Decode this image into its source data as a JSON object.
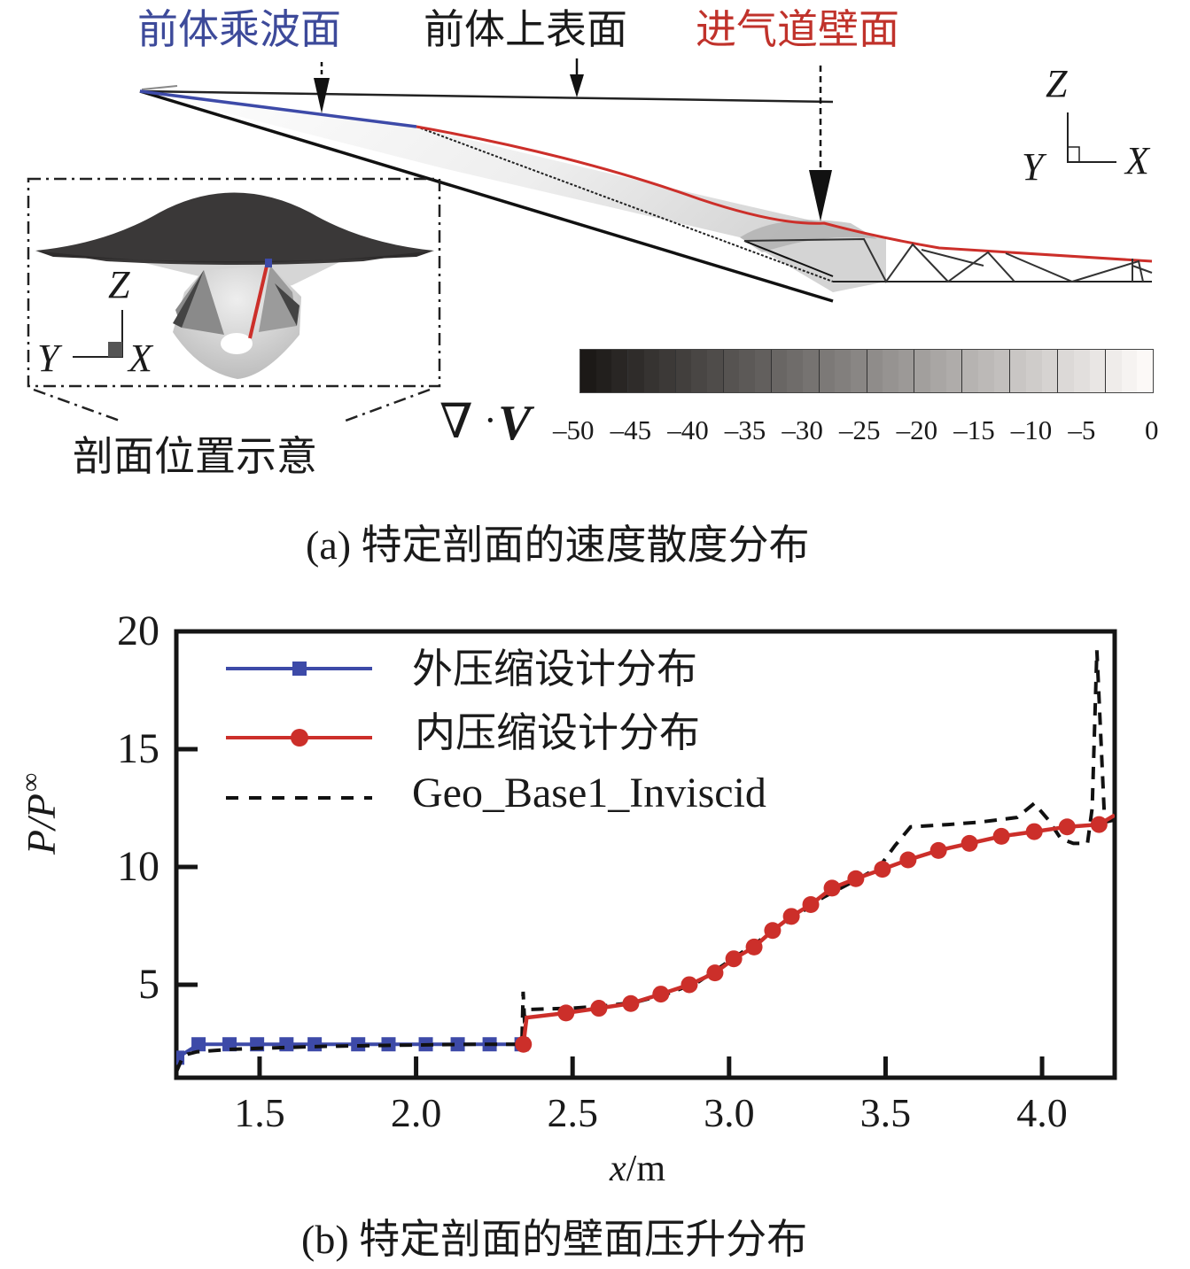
{
  "panel_a": {
    "labels": {
      "forebody_waverider": "前体乘波面",
      "forebody_upper": "前体上表面",
      "inlet_wall": "进气道壁面"
    },
    "label_colors": {
      "forebody_waverider": "#3d4a9a",
      "forebody_upper": "#1a1a1a",
      "inlet_wall": "#c0322b"
    },
    "axes_main": {
      "z": "Z",
      "y": "Y",
      "x": "X"
    },
    "axes_inset": {
      "z": "Z",
      "y": "Y",
      "x": "X"
    },
    "inset_caption": "剖面位置示意",
    "colorbar": {
      "symbol_nabla": "∇",
      "symbol_dot": "·",
      "symbol_v": "V",
      "ticks": [
        "–50",
        "–45",
        "–40",
        "–35",
        "–30",
        "–25",
        "–20",
        "–15",
        "–10",
        "–5",
        "0"
      ],
      "min": -50,
      "max": 0,
      "levels": 36
    },
    "caption": "(a) 特定剖面的速度散度分布"
  },
  "chart_data": {
    "type": "line",
    "title": "",
    "xlabel_italic": "x",
    "xlabel_unit": "/m",
    "ylabel_main": "P/P",
    "ylabel_sub": "∞",
    "xlim": [
      1.234,
      4.232
    ],
    "ylim": [
      1.05,
      20
    ],
    "xticks": [
      1.5,
      2.0,
      2.5,
      3.0,
      3.5,
      4.0
    ],
    "xtick_labels": [
      "1.5",
      "2.0",
      "2.5",
      "3.0",
      "3.5",
      "4.0"
    ],
    "yticks": [
      5,
      10,
      15,
      20
    ],
    "ytick_labels": [
      "5",
      "10",
      "15",
      "20"
    ],
    "grid": false,
    "legend_position": "top-left",
    "series": [
      {
        "name": "外压缩设计分布",
        "color": "#3d4aa8",
        "marker": "square",
        "style": "solid",
        "x": [
          1.237,
          1.305,
          1.404,
          1.492,
          1.586,
          1.676,
          1.815,
          1.912,
          2.031,
          2.133,
          2.235,
          2.337
        ],
        "y": [
          1.9,
          2.47,
          2.47,
          2.47,
          2.47,
          2.47,
          2.47,
          2.47,
          2.47,
          2.47,
          2.47,
          2.47
        ]
      },
      {
        "name": "内压缩设计分布",
        "color": "#cc2f2a",
        "marker": "circle",
        "style": "solid",
        "x": [
          2.343,
          2.353,
          2.479,
          2.584,
          2.686,
          2.782,
          2.873,
          2.955,
          3.015,
          3.08,
          3.139,
          3.199,
          3.261,
          3.329,
          3.405,
          3.49,
          3.572,
          3.669,
          3.768,
          3.87,
          3.975,
          4.08,
          4.182,
          4.232
        ],
        "y": [
          2.47,
          3.6,
          3.8,
          4.0,
          4.2,
          4.6,
          5.0,
          5.5,
          6.1,
          6.6,
          7.3,
          7.9,
          8.4,
          9.1,
          9.5,
          9.9,
          10.3,
          10.7,
          11.0,
          11.3,
          11.5,
          11.7,
          11.8,
          12.2
        ],
        "marker_from_index": 2,
        "extra_marker_indices": [
          0
        ]
      },
      {
        "name": "Geo_Base1_Inviscid",
        "color": "#111111",
        "marker": "none",
        "style": "dashed",
        "x": [
          1.234,
          1.25,
          1.27,
          1.3,
          1.4,
          1.5,
          1.7,
          2.0,
          2.2,
          2.338,
          2.342,
          2.346,
          2.36,
          2.5,
          2.6,
          2.7,
          2.8,
          2.9,
          3.0,
          3.1,
          3.2,
          3.3,
          3.4,
          3.48,
          3.53,
          3.58,
          3.7,
          3.8,
          3.92,
          3.975,
          4.02,
          4.06,
          4.1,
          4.145,
          4.16,
          4.168,
          4.175,
          4.2,
          4.232
        ],
        "y": [
          1.3,
          1.8,
          2.05,
          2.15,
          2.25,
          2.3,
          2.38,
          2.44,
          2.47,
          2.47,
          4.7,
          3.6,
          3.95,
          4.0,
          4.1,
          4.25,
          4.6,
          5.1,
          6.0,
          6.9,
          7.8,
          8.7,
          9.4,
          10.0,
          10.9,
          11.7,
          11.8,
          11.9,
          12.1,
          12.7,
          12.0,
          11.2,
          11.0,
          11.0,
          12.5,
          16.0,
          19.2,
          11.9,
          12.0
        ]
      }
    ],
    "caption": "(b) 特定剖面的壁面压升分布"
  }
}
